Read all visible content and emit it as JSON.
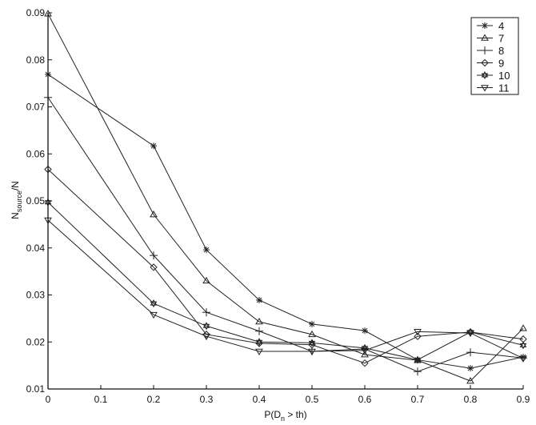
{
  "chart_data": {
    "type": "line",
    "title": "",
    "xlabel": "P(D_n > th)",
    "ylabel": "N_source/N",
    "xlim": [
      0,
      0.9
    ],
    "ylim": [
      0.01,
      0.09
    ],
    "x_ticks": [
      "0",
      "0.1",
      "0.2",
      "0.3",
      "0.4",
      "0.5",
      "0.6",
      "0.7",
      "0.8",
      "0.9"
    ],
    "y_ticks": [
      "0.01",
      "0.02",
      "0.03",
      "0.04",
      "0.05",
      "0.06",
      "0.07",
      "0.08",
      "0.09"
    ],
    "grid": false,
    "legend_position": "upper right",
    "x": [
      0,
      0.2,
      0.3,
      0.4,
      0.5,
      0.6,
      0.7,
      0.8,
      0.9
    ],
    "series": [
      {
        "name": "4",
        "marker": "asterisk",
        "values": [
          0.0769,
          0.0617,
          0.0396,
          0.0289,
          0.0238,
          0.0224,
          0.0162,
          0.0144,
          0.0168
        ]
      },
      {
        "name": "7",
        "marker": "triangle-up",
        "values": [
          0.0898,
          0.0471,
          0.033,
          0.0243,
          0.0216,
          0.0173,
          0.0161,
          0.0117,
          0.0229
        ]
      },
      {
        "name": "8",
        "marker": "plus",
        "values": [
          0.072,
          0.0384,
          0.0263,
          0.0223,
          0.018,
          0.0185,
          0.0137,
          0.0178,
          0.0166
        ]
      },
      {
        "name": "9",
        "marker": "diamond",
        "values": [
          0.0567,
          0.0359,
          0.0216,
          0.0197,
          0.0194,
          0.0155,
          0.0212,
          0.0221,
          0.0206
        ]
      },
      {
        "name": "10",
        "marker": "hexagram",
        "values": [
          0.0497,
          0.0282,
          0.0234,
          0.02,
          0.0198,
          0.0187,
          0.0162,
          0.0221,
          0.0193
        ]
      },
      {
        "name": "11",
        "marker": "triangle-down",
        "values": [
          0.0459,
          0.0258,
          0.0212,
          0.018,
          0.018,
          0.0182,
          0.0222,
          0.0219,
          0.0165
        ]
      }
    ]
  },
  "axes": {
    "xlabel_main": "P(D",
    "xlabel_sub": "n",
    "xlabel_tail": " > th)",
    "ylabel_main": "N",
    "ylabel_sub": "source",
    "ylabel_tail": "/N"
  }
}
